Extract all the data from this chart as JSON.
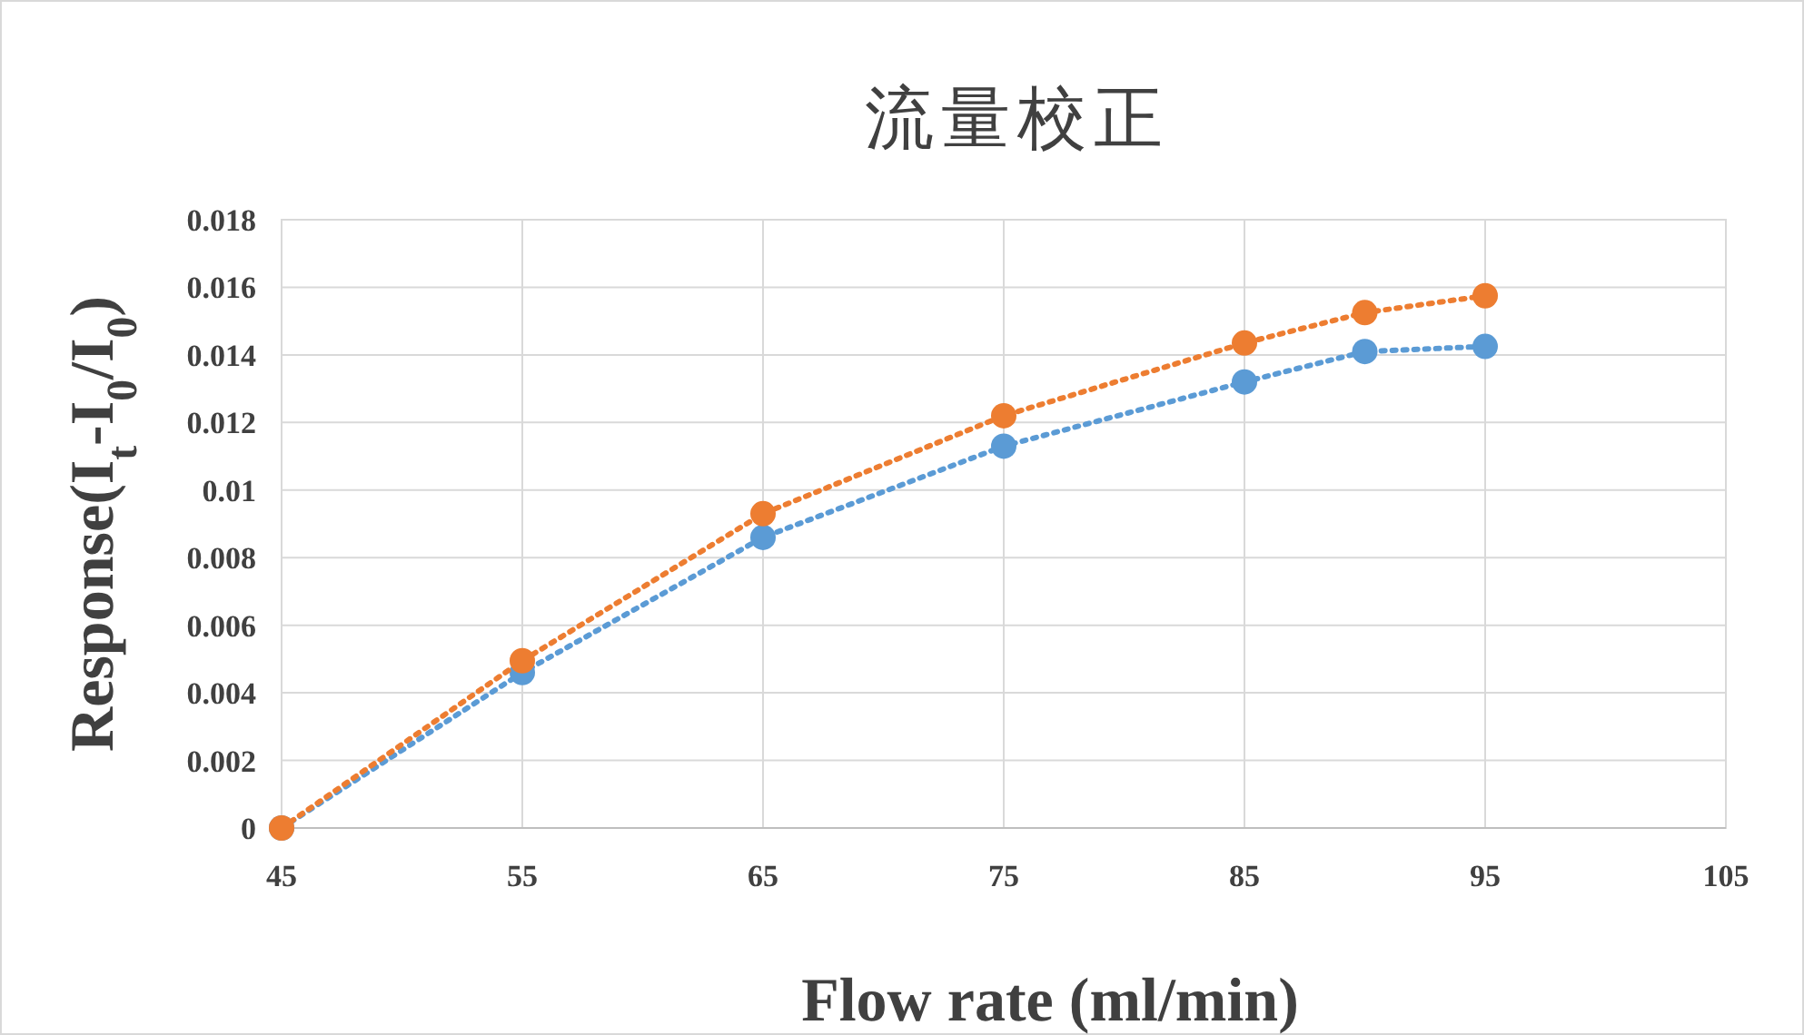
{
  "chart_data": {
    "type": "line",
    "title": "流量校正",
    "xlabel": "Flow rate (ml/min)",
    "ylabel": "Response(I$_{t}$-I$_{0}$/I$_{0}$)",
    "x": [
      45,
      55,
      65,
      75,
      85,
      90,
      95
    ],
    "series": [
      {
        "color": "#5b9bd5",
        "values": [
          0,
          0.0046,
          0.0086,
          0.0113,
          0.0132,
          0.0141,
          0.01425
        ]
      },
      {
        "color": "#ed7d31",
        "values": [
          0,
          0.00495,
          0.0093,
          0.0122,
          0.01435,
          0.01525,
          0.01575
        ]
      }
    ],
    "xlim": [
      45,
      105
    ],
    "xticks": [
      45,
      55,
      65,
      75,
      85,
      95,
      105
    ],
    "ylim": [
      0,
      0.018
    ],
    "yticks": [
      0,
      0.002,
      0.004,
      0.006,
      0.008,
      0.01,
      0.012,
      0.014,
      0.016,
      0.018
    ],
    "grid": true,
    "marker": "circle",
    "line_style": "dotted"
  }
}
